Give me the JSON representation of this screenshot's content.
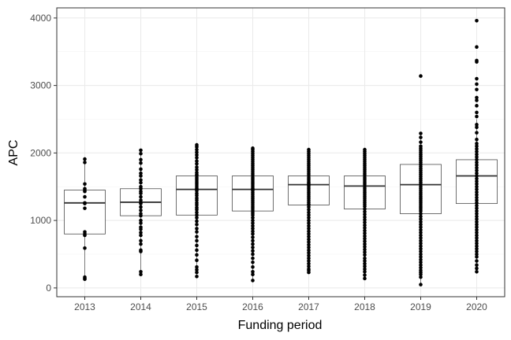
{
  "chart_data": {
    "type": "boxplot",
    "title": "",
    "xlabel": "Funding period",
    "ylabel": "APC",
    "categories": [
      "2013",
      "2014",
      "2015",
      "2016",
      "2017",
      "2018",
      "2019",
      "2020"
    ],
    "ylim": [
      -130,
      4150
    ],
    "yticks": [
      0,
      1000,
      2000,
      3000,
      4000
    ],
    "grid": true,
    "legend": "none",
    "boxes": [
      {
        "category": "2013",
        "whisker_low": 130,
        "q1": 800,
        "median": 1260,
        "q3": 1450,
        "whisker_high": 1910
      },
      {
        "category": "2014",
        "whisker_low": 200,
        "q1": 1070,
        "median": 1270,
        "q3": 1470,
        "whisker_high": 2040
      },
      {
        "category": "2015",
        "whisker_low": 170,
        "q1": 1080,
        "median": 1460,
        "q3": 1660,
        "whisker_high": 2120
      },
      {
        "category": "2016",
        "whisker_low": 100,
        "q1": 1140,
        "median": 1460,
        "q3": 1660,
        "whisker_high": 2070
      },
      {
        "category": "2017",
        "whisker_low": 230,
        "q1": 1230,
        "median": 1530,
        "q3": 1660,
        "whisker_high": 2050
      },
      {
        "category": "2018",
        "whisker_low": 140,
        "q1": 1170,
        "median": 1510,
        "q3": 1660,
        "whisker_high": 2050
      },
      {
        "category": "2019",
        "whisker_low": 50,
        "q1": 1100,
        "median": 1530,
        "q3": 1830,
        "whisker_high": 2290
      },
      {
        "category": "2020",
        "whisker_low": 240,
        "q1": 1250,
        "median": 1660,
        "q3": 1900,
        "whisker_high": 2500
      }
    ],
    "points": [
      {
        "category": "2013",
        "values": [
          1910,
          1860,
          1540,
          1470,
          1450,
          1430,
          1350,
          1260,
          1250,
          1180,
          830,
          800,
          780,
          590,
          160,
          140,
          130
        ]
      },
      {
        "category": "2014",
        "values": [
          2040,
          1990,
          1900,
          1850,
          1760,
          1700,
          1660,
          1600,
          1560,
          1500,
          1470,
          1430,
          1400,
          1350,
          1300,
          1270,
          1250,
          1200,
          1150,
          1100,
          1070,
          1000,
          960,
          900,
          870,
          820,
          780,
          700,
          650,
          560,
          540,
          240,
          200
        ]
      },
      {
        "category": "2015",
        "values": [
          2120,
          2090,
          2050,
          2010,
          1970,
          1930,
          1880,
          1840,
          1790,
          1750,
          1710,
          1680,
          1660,
          1630,
          1600,
          1570,
          1540,
          1510,
          1480,
          1460,
          1440,
          1400,
          1370,
          1330,
          1300,
          1260,
          1230,
          1190,
          1160,
          1120,
          1080,
          1040,
          990,
          940,
          880,
          830,
          760,
          700,
          630,
          560,
          490,
          410,
          310,
          270,
          230,
          170
        ]
      },
      {
        "category": "2016",
        "values": [
          2070,
          2050,
          2020,
          1990,
          1960,
          1930,
          1900,
          1870,
          1840,
          1810,
          1780,
          1750,
          1720,
          1690,
          1660,
          1630,
          1600,
          1570,
          1540,
          1510,
          1480,
          1460,
          1440,
          1410,
          1380,
          1350,
          1320,
          1290,
          1260,
          1230,
          1200,
          1170,
          1140,
          1110,
          1080,
          1040,
          1000,
          960,
          920,
          880,
          840,
          800,
          750,
          700,
          650,
          600,
          550,
          500,
          440,
          380,
          310,
          240,
          200,
          110
        ]
      },
      {
        "category": "2017",
        "values": [
          2050,
          2020,
          1990,
          1960,
          1930,
          1900,
          1870,
          1840,
          1810,
          1780,
          1750,
          1720,
          1690,
          1660,
          1630,
          1600,
          1570,
          1550,
          1530,
          1510,
          1480,
          1450,
          1420,
          1390,
          1360,
          1330,
          1300,
          1270,
          1240,
          1230,
          1200,
          1160,
          1120,
          1080,
          1040,
          1000,
          960,
          920,
          880,
          840,
          800,
          760,
          720,
          680,
          640,
          600,
          560,
          520,
          480,
          440,
          400,
          360,
          320,
          280,
          260,
          230
        ]
      },
      {
        "category": "2018",
        "values": [
          2050,
          2020,
          1990,
          1960,
          1930,
          1900,
          1870,
          1840,
          1810,
          1780,
          1750,
          1720,
          1690,
          1660,
          1630,
          1600,
          1570,
          1540,
          1510,
          1480,
          1450,
          1420,
          1390,
          1360,
          1330,
          1300,
          1270,
          1240,
          1210,
          1170,
          1130,
          1090,
          1050,
          1010,
          970,
          930,
          890,
          850,
          810,
          770,
          730,
          690,
          650,
          610,
          570,
          530,
          490,
          440,
          400,
          360,
          320,
          280,
          240,
          190,
          140
        ]
      },
      {
        "category": "2019",
        "values": [
          3140,
          2290,
          2230,
          2160,
          2100,
          2070,
          2040,
          2010,
          1980,
          1950,
          1920,
          1890,
          1860,
          1830,
          1800,
          1770,
          1740,
          1710,
          1680,
          1650,
          1620,
          1590,
          1560,
          1530,
          1500,
          1470,
          1440,
          1410,
          1380,
          1350,
          1320,
          1290,
          1260,
          1230,
          1200,
          1170,
          1140,
          1100,
          1060,
          1020,
          980,
          940,
          900,
          860,
          820,
          780,
          740,
          700,
          660,
          620,
          580,
          540,
          500,
          460,
          420,
          380,
          340,
          300,
          260,
          230,
          200,
          160,
          50
        ]
      },
      {
        "category": "2020",
        "values": [
          3960,
          3570,
          3370,
          3350,
          3100,
          3020,
          2940,
          2820,
          2780,
          2700,
          2600,
          2540,
          2420,
          2380,
          2300,
          2200,
          2140,
          2100,
          2060,
          2020,
          1980,
          1940,
          1900,
          1860,
          1820,
          1780,
          1740,
          1700,
          1660,
          1620,
          1580,
          1540,
          1500,
          1460,
          1420,
          1380,
          1340,
          1300,
          1260,
          1220,
          1180,
          1140,
          1100,
          1060,
          1020,
          980,
          940,
          900,
          860,
          820,
          780,
          740,
          700,
          660,
          620,
          580,
          540,
          500,
          460,
          400,
          340,
          290,
          240
        ]
      }
    ],
    "colors": {
      "box_stroke": "#333333",
      "points": "#000000",
      "grid": "#ebebeb",
      "panel_border": "#333333",
      "tick_text": "#4d4d4d"
    }
  }
}
